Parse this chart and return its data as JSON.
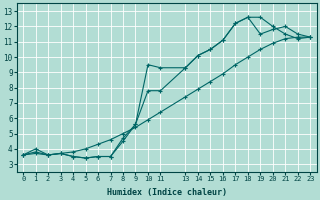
{
  "xlabel": "Humidex (Indice chaleur)",
  "bg_color": "#b2ddd4",
  "line_color": "#006666",
  "grid_color": "#ffffff",
  "xlim": [
    -0.5,
    23.5
  ],
  "ylim": [
    2.5,
    13.5
  ],
  "xticks": [
    0,
    1,
    2,
    3,
    4,
    5,
    6,
    7,
    8,
    9,
    10,
    11,
    13,
    14,
    15,
    16,
    17,
    18,
    19,
    20,
    21,
    22,
    23
  ],
  "xtick_labels": [
    "0",
    "1",
    "2",
    "3",
    "4",
    "5",
    "6",
    "7",
    "8",
    "9",
    "10",
    "11",
    "13",
    "14",
    "15",
    "16",
    "17",
    "18",
    "19",
    "20",
    "21",
    "22",
    "23"
  ],
  "yticks": [
    3,
    4,
    5,
    6,
    7,
    8,
    9,
    10,
    11,
    12,
    13
  ],
  "line1_x": [
    0,
    1,
    2,
    3,
    4,
    5,
    6,
    7,
    8,
    9,
    10,
    11,
    13,
    14,
    15,
    16,
    17,
    18,
    19,
    20,
    21,
    22,
    23
  ],
  "line1_y": [
    3.6,
    4.0,
    3.6,
    3.7,
    3.5,
    3.4,
    3.5,
    3.5,
    4.7,
    5.6,
    9.5,
    9.3,
    9.3,
    10.1,
    10.5,
    11.1,
    12.2,
    12.6,
    12.6,
    12.0,
    11.5,
    11.2,
    11.3
  ],
  "line2_x": [
    0,
    1,
    2,
    3,
    4,
    5,
    6,
    7,
    8,
    9,
    10,
    11,
    13,
    14,
    15,
    16,
    17,
    18,
    19,
    20,
    21,
    22,
    23
  ],
  "line2_y": [
    3.6,
    3.8,
    3.6,
    3.7,
    3.5,
    3.4,
    3.5,
    3.5,
    4.5,
    5.6,
    7.8,
    7.8,
    9.3,
    10.1,
    10.5,
    11.1,
    12.2,
    12.6,
    11.5,
    11.8,
    12.0,
    11.5,
    11.3
  ],
  "line3_x": [
    0,
    1,
    2,
    3,
    4,
    5,
    6,
    7,
    8,
    9,
    10,
    11,
    13,
    14,
    15,
    16,
    17,
    18,
    19,
    20,
    21,
    22,
    23
  ],
  "line3_y": [
    3.6,
    3.7,
    3.6,
    3.7,
    3.8,
    4.0,
    4.3,
    4.6,
    5.0,
    5.4,
    5.9,
    6.4,
    7.4,
    7.9,
    8.4,
    8.9,
    9.5,
    10.0,
    10.5,
    10.9,
    11.2,
    11.3,
    11.3
  ]
}
